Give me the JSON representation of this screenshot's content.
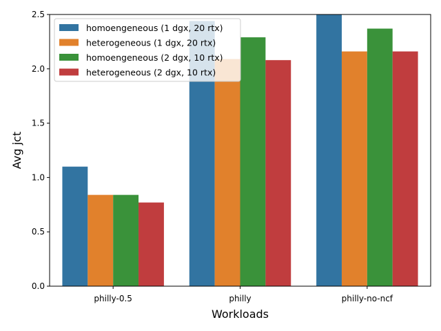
{
  "chart_data": {
    "type": "bar",
    "title": "",
    "xlabel": "Workloads",
    "ylabel": "Avg jct",
    "ylim": [
      0,
      2.5
    ],
    "yticks": [
      "0.0",
      "0.5",
      "1.0",
      "1.5",
      "2.0",
      "2.5"
    ],
    "categories": [
      "philly-0.5",
      "philly",
      "philly-no-ncf"
    ],
    "series": [
      {
        "name": "homoengeneous (1 dgx, 20 rtx)",
        "color": "#3274a1",
        "values": [
          1.1,
          2.44,
          2.5
        ]
      },
      {
        "name": "heterogeneous (1 dgx, 20 rtx)",
        "color": "#e1812c",
        "values": [
          0.84,
          2.09,
          2.16
        ]
      },
      {
        "name": "homoengeneous (2 dgx, 10 rtx)",
        "color": "#3a923a",
        "values": [
          0.84,
          2.29,
          2.37
        ]
      },
      {
        "name": "heterogeneous (2 dgx, 10 rtx)",
        "color": "#c03d3e",
        "values": [
          0.77,
          2.08,
          2.16
        ]
      }
    ],
    "legend": "top-left",
    "grid": false
  }
}
